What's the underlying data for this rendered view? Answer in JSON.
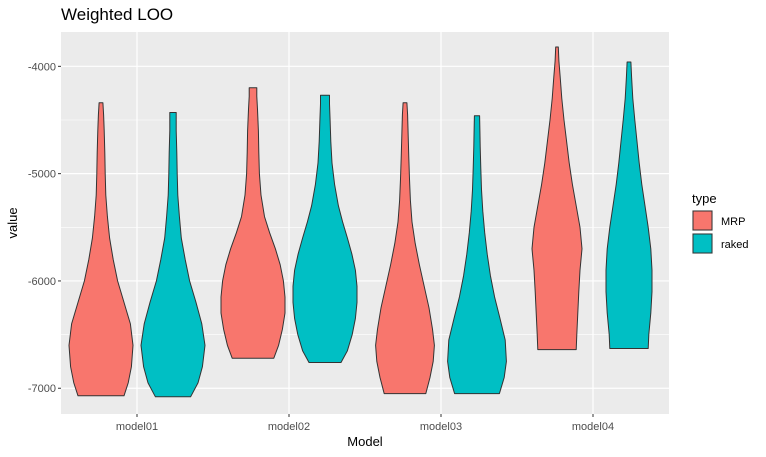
{
  "chart_data": {
    "type": "violin",
    "title": "Weighted LOO",
    "xlabel": "Model",
    "ylabel": "value",
    "categories": [
      "model01",
      "model02",
      "model03",
      "model04"
    ],
    "ylim": [
      -7240,
      -3680
    ],
    "yticks": [
      -7000,
      -6000,
      -5000,
      -4000
    ],
    "ytick_labels": [
      "-7000",
      "-6000",
      "-5000",
      "-4000"
    ],
    "grid": true,
    "legend": {
      "title": "type",
      "position": "right",
      "entries": [
        {
          "name": "MRP",
          "color": "#F8766D"
        },
        {
          "name": "raked",
          "color": "#00BFC4"
        }
      ]
    },
    "series": [
      {
        "name": "MRP",
        "color": "#F8766D",
        "violins": [
          {
            "category": "model01",
            "min": -7070,
            "max": -4340,
            "profile": [
              [
                -7070,
                0.72
              ],
              [
                -6950,
                0.85
              ],
              [
                -6800,
                0.95
              ],
              [
                -6600,
                1.0
              ],
              [
                -6400,
                0.92
              ],
              [
                -6200,
                0.72
              ],
              [
                -6000,
                0.52
              ],
              [
                -5800,
                0.38
              ],
              [
                -5600,
                0.27
              ],
              [
                -5400,
                0.2
              ],
              [
                -5200,
                0.15
              ],
              [
                -5000,
                0.13
              ],
              [
                -4800,
                0.12
              ],
              [
                -4600,
                0.1
              ],
              [
                -4450,
                0.08
              ],
              [
                -4340,
                0.06
              ]
            ]
          },
          {
            "category": "model02",
            "min": -6720,
            "max": -4200,
            "profile": [
              [
                -6720,
                0.65
              ],
              [
                -6600,
                0.8
              ],
              [
                -6450,
                0.92
              ],
              [
                -6300,
                1.0
              ],
              [
                -6150,
                1.0
              ],
              [
                -6000,
                0.95
              ],
              [
                -5850,
                0.85
              ],
              [
                -5700,
                0.7
              ],
              [
                -5550,
                0.52
              ],
              [
                -5400,
                0.36
              ],
              [
                -5200,
                0.25
              ],
              [
                -5000,
                0.2
              ],
              [
                -4800,
                0.18
              ],
              [
                -4600,
                0.17
              ],
              [
                -4400,
                0.14
              ],
              [
                -4280,
                0.12
              ],
              [
                -4200,
                0.12
              ]
            ]
          },
          {
            "category": "model03",
            "min": -7050,
            "max": -4340,
            "profile": [
              [
                -7050,
                0.65
              ],
              [
                -6900,
                0.78
              ],
              [
                -6750,
                0.88
              ],
              [
                -6600,
                0.92
              ],
              [
                -6450,
                0.86
              ],
              [
                -6250,
                0.75
              ],
              [
                -6050,
                0.6
              ],
              [
                -5850,
                0.45
              ],
              [
                -5650,
                0.32
              ],
              [
                -5450,
                0.22
              ],
              [
                -5250,
                0.17
              ],
              [
                -5050,
                0.14
              ],
              [
                -4850,
                0.12
              ],
              [
                -4650,
                0.1
              ],
              [
                -4450,
                0.08
              ],
              [
                -4340,
                0.06
              ]
            ]
          },
          {
            "category": "model04",
            "min": -6640,
            "max": -3820,
            "profile": [
              [
                -6640,
                0.6
              ],
              [
                -6500,
                0.62
              ],
              [
                -6300,
                0.65
              ],
              [
                -6100,
                0.68
              ],
              [
                -5900,
                0.72
              ],
              [
                -5700,
                0.78
              ],
              [
                -5500,
                0.72
              ],
              [
                -5300,
                0.6
              ],
              [
                -5100,
                0.48
              ],
              [
                -4900,
                0.38
              ],
              [
                -4700,
                0.3
              ],
              [
                -4500,
                0.22
              ],
              [
                -4300,
                0.15
              ],
              [
                -4100,
                0.1
              ],
              [
                -3950,
                0.06
              ],
              [
                -3820,
                0.04
              ]
            ]
          }
        ]
      },
      {
        "name": "raked",
        "color": "#00BFC4",
        "violins": [
          {
            "category": "model01",
            "min": -7080,
            "max": -4430,
            "profile": [
              [
                -7080,
                0.55
              ],
              [
                -6950,
                0.78
              ],
              [
                -6800,
                0.92
              ],
              [
                -6600,
                1.0
              ],
              [
                -6400,
                0.9
              ],
              [
                -6200,
                0.72
              ],
              [
                -6000,
                0.52
              ],
              [
                -5800,
                0.38
              ],
              [
                -5600,
                0.26
              ],
              [
                -5400,
                0.2
              ],
              [
                -5200,
                0.15
              ],
              [
                -5000,
                0.13
              ],
              [
                -4800,
                0.12
              ],
              [
                -4600,
                0.1
              ],
              [
                -4430,
                0.1
              ]
            ]
          },
          {
            "category": "model02",
            "min": -6760,
            "max": -4270,
            "profile": [
              [
                -6760,
                0.5
              ],
              [
                -6650,
                0.7
              ],
              [
                -6500,
                0.85
              ],
              [
                -6350,
                0.95
              ],
              [
                -6200,
                1.0
              ],
              [
                -6050,
                1.0
              ],
              [
                -5900,
                0.95
              ],
              [
                -5750,
                0.84
              ],
              [
                -5600,
                0.7
              ],
              [
                -5450,
                0.55
              ],
              [
                -5300,
                0.42
              ],
              [
                -5100,
                0.3
              ],
              [
                -4900,
                0.22
              ],
              [
                -4700,
                0.18
              ],
              [
                -4500,
                0.16
              ],
              [
                -4350,
                0.14
              ],
              [
                -4270,
                0.14
              ]
            ]
          },
          {
            "category": "model03",
            "min": -7050,
            "max": -4460,
            "profile": [
              [
                -7050,
                0.7
              ],
              [
                -6900,
                0.85
              ],
              [
                -6750,
                0.92
              ],
              [
                -6550,
                0.88
              ],
              [
                -6350,
                0.72
              ],
              [
                -6150,
                0.55
              ],
              [
                -5950,
                0.42
              ],
              [
                -5750,
                0.32
              ],
              [
                -5550,
                0.24
              ],
              [
                -5350,
                0.18
              ],
              [
                -5150,
                0.14
              ],
              [
                -4950,
                0.12
              ],
              [
                -4750,
                0.1
              ],
              [
                -4600,
                0.09
              ],
              [
                -4460,
                0.08
              ]
            ]
          },
          {
            "category": "model04",
            "min": -6630,
            "max": -3960,
            "profile": [
              [
                -6630,
                0.6
              ],
              [
                -6500,
                0.62
              ],
              [
                -6300,
                0.68
              ],
              [
                -6100,
                0.72
              ],
              [
                -5900,
                0.72
              ],
              [
                -5700,
                0.68
              ],
              [
                -5500,
                0.6
              ],
              [
                -5300,
                0.5
              ],
              [
                -5100,
                0.4
              ],
              [
                -4900,
                0.32
              ],
              [
                -4700,
                0.25
              ],
              [
                -4500,
                0.18
              ],
              [
                -4300,
                0.12
              ],
              [
                -4100,
                0.08
              ],
              [
                -3960,
                0.06
              ]
            ]
          }
        ]
      }
    ]
  }
}
